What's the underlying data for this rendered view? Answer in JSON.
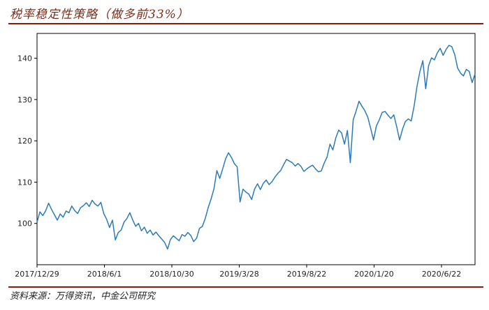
{
  "title": "税率稳定性策略（做多前33%）",
  "source": "资料来源：万得资讯，中金公司研究",
  "chart_data": {
    "type": "line",
    "x_tick_labels": [
      "2017/12/29",
      "2018/6/1",
      "2018/10/30",
      "2019/3/28",
      "2019/8/22",
      "2020/1/20",
      "2020/6/22"
    ],
    "y_ticks": [
      100,
      110,
      120,
      130,
      140
    ],
    "ylim": [
      90,
      146
    ],
    "grid": false,
    "line_color": "#2b7bba",
    "series": [
      {
        "values": [
          100.3,
          102.8,
          101.9,
          103.1,
          104.9,
          103.4,
          102.1,
          100.8,
          102.3,
          101.5,
          103.0,
          102.6,
          104.2,
          103.1,
          102.4,
          103.8,
          104.3,
          105.0,
          104.1,
          105.6,
          104.7,
          104.2,
          105.1,
          102.4,
          101.0,
          99.0,
          100.8,
          96.0,
          97.8,
          98.4,
          100.3,
          101.2,
          102.6,
          100.8,
          99.3,
          100.0,
          98.2,
          99.1,
          97.6,
          98.4,
          97.2,
          97.9,
          97.0,
          96.2,
          95.4,
          93.8,
          96.1,
          97.0,
          96.4,
          95.8,
          97.3,
          96.9,
          97.8,
          97.1,
          95.6,
          96.4,
          98.8,
          99.3,
          101.2,
          103.8,
          105.9,
          108.4,
          112.8,
          110.9,
          113.2,
          115.6,
          117.1,
          116.0,
          114.5,
          113.7,
          105.2,
          108.3,
          107.6,
          107.1,
          105.8,
          108.3,
          109.6,
          108.2,
          109.7,
          110.5,
          109.4,
          110.1,
          111.2,
          112.1,
          112.8,
          114.2,
          115.5,
          115.1,
          114.7,
          113.9,
          114.5,
          113.8,
          112.6,
          113.2,
          113.7,
          114.1,
          113.2,
          112.5,
          112.7,
          114.6,
          116.1,
          119.2,
          117.8,
          120.7,
          122.6,
          121.9,
          119.2,
          122.5,
          114.7,
          125.1,
          127.2,
          129.6,
          128.4,
          127.3,
          125.8,
          123.1,
          120.2,
          123.6,
          125.1,
          126.9,
          127.1,
          126.2,
          125.4,
          126.3,
          123.4,
          120.2,
          122.8,
          124.7,
          125.3,
          124.8,
          128.4,
          133.2,
          136.8,
          139.4,
          132.6,
          138.2,
          140.1,
          139.6,
          141.3,
          142.4,
          140.7,
          142.1,
          143.1,
          142.8,
          140.9,
          137.6,
          136.4,
          135.7,
          137.3,
          136.8,
          134.1,
          136.2
        ]
      }
    ]
  }
}
